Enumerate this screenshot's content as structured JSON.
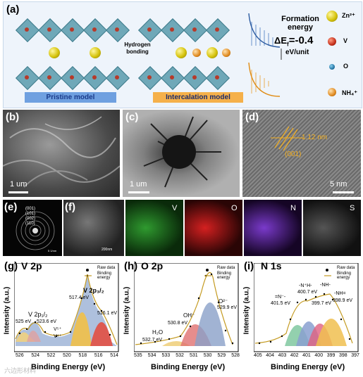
{
  "panel_a": {
    "letter": "(a)",
    "pristine_label": "Pristine model",
    "intercalation_label": "Intercalation model",
    "hydrogen_bonding": "Hydrogen bonding",
    "formation_energy_title": "Formation energy",
    "delta_ef": "ΔE",
    "delta_ef_sub": "f",
    "delta_ef_value": "=-0.4",
    "unit": "eV/unit",
    "legend": [
      {
        "symbol": "zn-ball",
        "label": "Zn²⁺"
      },
      {
        "symbol": "v-ball",
        "label": "V"
      },
      {
        "symbol": "o-ball",
        "label": "O"
      },
      {
        "symbol": "nh4-ball",
        "label": "NH₄⁺"
      }
    ],
    "colors": {
      "pristine_bg": "#6fa0e0",
      "intercalation_bg": "#f5b04a",
      "zn": "#d6c40e",
      "v": "#b63a2a",
      "o": "#1a6a9a",
      "octahedra": "#6fa8b8"
    }
  },
  "panel_b": {
    "letter": "(b)",
    "scale": "1 um"
  },
  "panel_c": {
    "letter": "(c)",
    "scale": "1 um"
  },
  "panel_d": {
    "letter": "(d)",
    "scale": "5 nm",
    "spacing": "1.12 nm",
    "plane": "(001)"
  },
  "panel_e": {
    "letter": "(e)",
    "rings": [
      "(001)",
      "(101)",
      "(002)",
      "(110)"
    ],
    "scale": "5 1/nm"
  },
  "panel_f": {
    "letter": "(f)",
    "scale": "200nm",
    "elements": [
      "V",
      "O",
      "N",
      "S"
    ],
    "element_colors": [
      "#2f9a2f",
      "#d42020",
      "#7a3acb",
      "#bbbbbb"
    ]
  },
  "xps_common": {
    "ylabel": "Intensity (a.u.)",
    "xlabel": "Binding Energy (eV)",
    "legend_raw": "Raw data",
    "legend_fit": "Binding energy"
  },
  "panel_g": {
    "letter": "(g)",
    "title": "V 2p",
    "x_ticks": [
      "526",
      "524",
      "522",
      "520",
      "518",
      "516",
      "514"
    ],
    "annotations": [
      "V 2p₃/₂",
      "517.4 eV",
      "516.1 eV",
      "V 2p₁/₂",
      "525 eV",
      "523.6 eV",
      "V⁵⁺",
      "V⁴⁺"
    ]
  },
  "panel_h": {
    "letter": "(h)",
    "title": "O 2p",
    "x_ticks": [
      "535",
      "534",
      "533",
      "532",
      "531",
      "530",
      "529",
      "528"
    ],
    "annotations": [
      "O²⁻",
      "529.9 eV",
      "OH⁻",
      "530.8 eV",
      "H₂O",
      "532.7 eV"
    ]
  },
  "panel_i": {
    "letter": "(i)",
    "title": "N 1s",
    "x_ticks": [
      "405",
      "404",
      "403",
      "402",
      "401",
      "400",
      "399",
      "398",
      "397"
    ],
    "annotations": [
      "=N⁻-",
      "401.5 eV",
      "-N⁺H-",
      "400.7 eV",
      "-NH-",
      "399.7 eV",
      "-NH=",
      "398.9 eV"
    ]
  },
  "watermark": "六边形材料"
}
